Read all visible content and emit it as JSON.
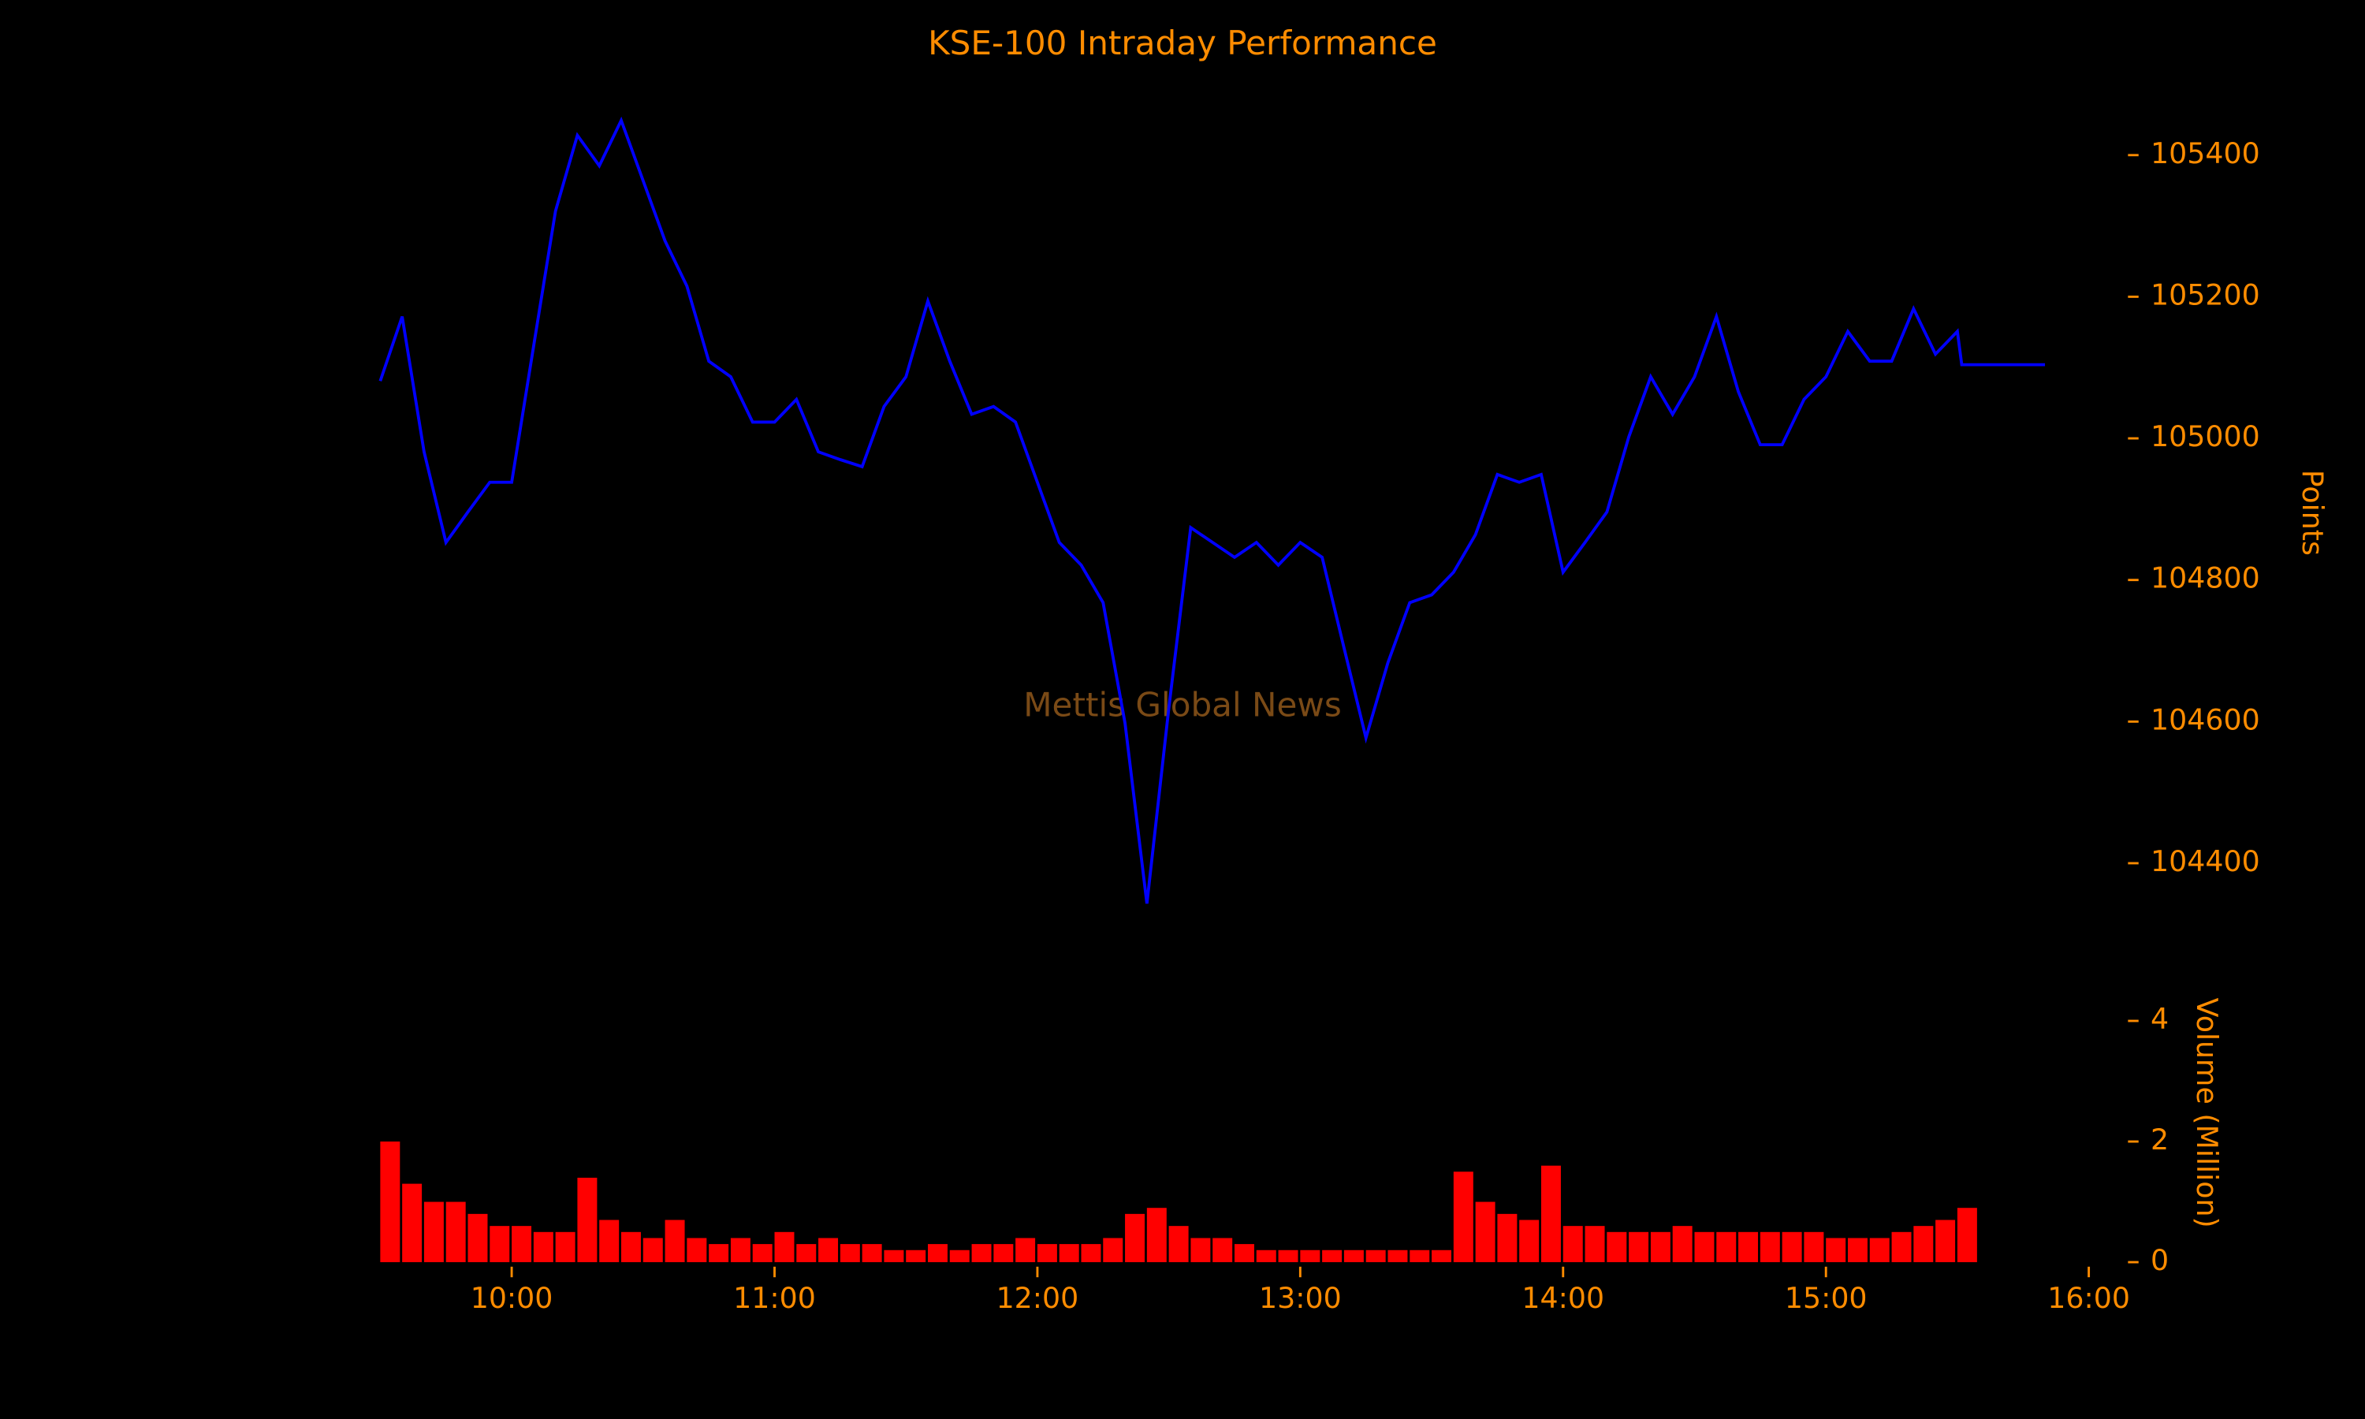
{
  "chart_data": [
    {
      "type": "line",
      "title": "KSE-100 Intraday Performance",
      "ylabel": "Points",
      "watermark": "Mettis Global News",
      "x": [
        "09:30",
        "09:35",
        "09:40",
        "09:45",
        "09:50",
        "09:55",
        "10:00",
        "10:05",
        "10:10",
        "10:15",
        "10:20",
        "10:25",
        "10:30",
        "10:35",
        "10:40",
        "10:45",
        "10:50",
        "10:55",
        "11:00",
        "11:05",
        "11:10",
        "11:15",
        "11:20",
        "11:25",
        "11:30",
        "11:35",
        "11:40",
        "11:45",
        "11:50",
        "11:55",
        "12:00",
        "12:05",
        "12:10",
        "12:15",
        "12:20",
        "12:25",
        "12:30",
        "12:35",
        "12:40",
        "12:45",
        "12:50",
        "12:55",
        "13:00",
        "13:05",
        "13:10",
        "13:15",
        "13:20",
        "13:25",
        "13:30",
        "13:35",
        "13:40",
        "13:45",
        "13:50",
        "13:55",
        "14:00",
        "14:05",
        "14:10",
        "14:15",
        "14:20",
        "14:25",
        "14:30",
        "14:35",
        "14:40",
        "14:45",
        "14:50",
        "14:55",
        "15:00",
        "15:05",
        "15:10",
        "15:15",
        "15:20",
        "15:25",
        "15:30",
        "15:31",
        "15:50"
      ],
      "series": [
        {
          "name": "KSE-100",
          "color": "#0000ff",
          "values": [
            105081,
            105172,
            104981,
            104853,
            104896,
            104938,
            104938,
            105130,
            105321,
            105428,
            105385,
            105449,
            105364,
            105279,
            105215,
            105109,
            105087,
            105023,
            105023,
            105055,
            104981,
            104970,
            104960,
            105045,
            105087,
            105194,
            105109,
            105034,
            105045,
            105023,
            104938,
            104853,
            104821,
            104768,
            104598,
            104343,
            104619,
            104874,
            104853,
            104832,
            104853,
            104821,
            104853,
            104832,
            104704,
            104577,
            104683,
            104768,
            104779,
            104811,
            104864,
            104949,
            104938,
            104949,
            104811,
            104853,
            104896,
            105002,
            105087,
            105034,
            105087,
            105172,
            105066,
            104991,
            104991,
            105055,
            105087,
            105151,
            105109,
            105109,
            105183,
            105119,
            105151,
            105104,
            105104
          ]
        }
      ],
      "xlim": [
        "09:30",
        "16:00"
      ],
      "ylim": [
        104320,
        105470
      ],
      "yticks": [
        104400,
        104600,
        104800,
        105000,
        105200,
        105400
      ]
    },
    {
      "type": "bar",
      "ylabel": "Volume (Million)",
      "x": [
        "09:30",
        "09:35",
        "09:40",
        "09:45",
        "09:50",
        "09:55",
        "10:00",
        "10:05",
        "10:10",
        "10:15",
        "10:20",
        "10:25",
        "10:30",
        "10:35",
        "10:40",
        "10:45",
        "10:50",
        "10:55",
        "11:00",
        "11:05",
        "11:10",
        "11:15",
        "11:20",
        "11:25",
        "11:30",
        "11:35",
        "11:40",
        "11:45",
        "11:50",
        "11:55",
        "12:00",
        "12:05",
        "12:10",
        "12:15",
        "12:20",
        "12:25",
        "12:30",
        "12:35",
        "12:40",
        "12:45",
        "12:50",
        "12:55",
        "13:00",
        "13:05",
        "13:10",
        "13:15",
        "13:20",
        "13:25",
        "13:30",
        "13:35",
        "13:40",
        "13:45",
        "13:50",
        "13:55",
        "14:00",
        "14:05",
        "14:10",
        "14:15",
        "14:20",
        "14:25",
        "14:30",
        "14:35",
        "14:40",
        "14:45",
        "14:50",
        "14:55",
        "15:00",
        "15:05",
        "15:10",
        "15:15",
        "15:20",
        "15:25",
        "15:30"
      ],
      "series": [
        {
          "name": "Volume",
          "color": "#ff0000",
          "values": [
            2.0,
            1.3,
            1.0,
            1.0,
            0.8,
            0.6,
            0.6,
            0.5,
            0.5,
            1.4,
            0.7,
            0.5,
            0.4,
            0.7,
            0.4,
            0.3,
            0.4,
            0.3,
            0.5,
            0.3,
            0.4,
            0.3,
            0.3,
            0.2,
            0.2,
            0.3,
            0.2,
            0.3,
            0.3,
            0.4,
            0.3,
            0.3,
            0.3,
            0.4,
            0.8,
            0.9,
            0.6,
            0.4,
            0.4,
            0.3,
            0.2,
            0.2,
            0.2,
            0.2,
            0.2,
            0.2,
            0.2,
            0.2,
            0.2,
            1.5,
            1.0,
            0.8,
            0.7,
            1.6,
            0.6,
            0.6,
            0.5,
            0.5,
            0.5,
            0.6,
            0.5,
            0.5,
            0.5,
            0.5,
            0.5,
            0.5,
            0.4,
            0.4,
            0.4,
            0.5,
            0.6,
            0.7,
            0.9
          ]
        }
      ],
      "xlim": [
        "09:30",
        "16:00"
      ],
      "xticks": [
        "10:00",
        "11:00",
        "12:00",
        "13:00",
        "14:00",
        "15:00",
        "16:00"
      ],
      "ylim": [
        0,
        4.7
      ],
      "yticks": [
        0,
        2,
        4
      ]
    }
  ]
}
